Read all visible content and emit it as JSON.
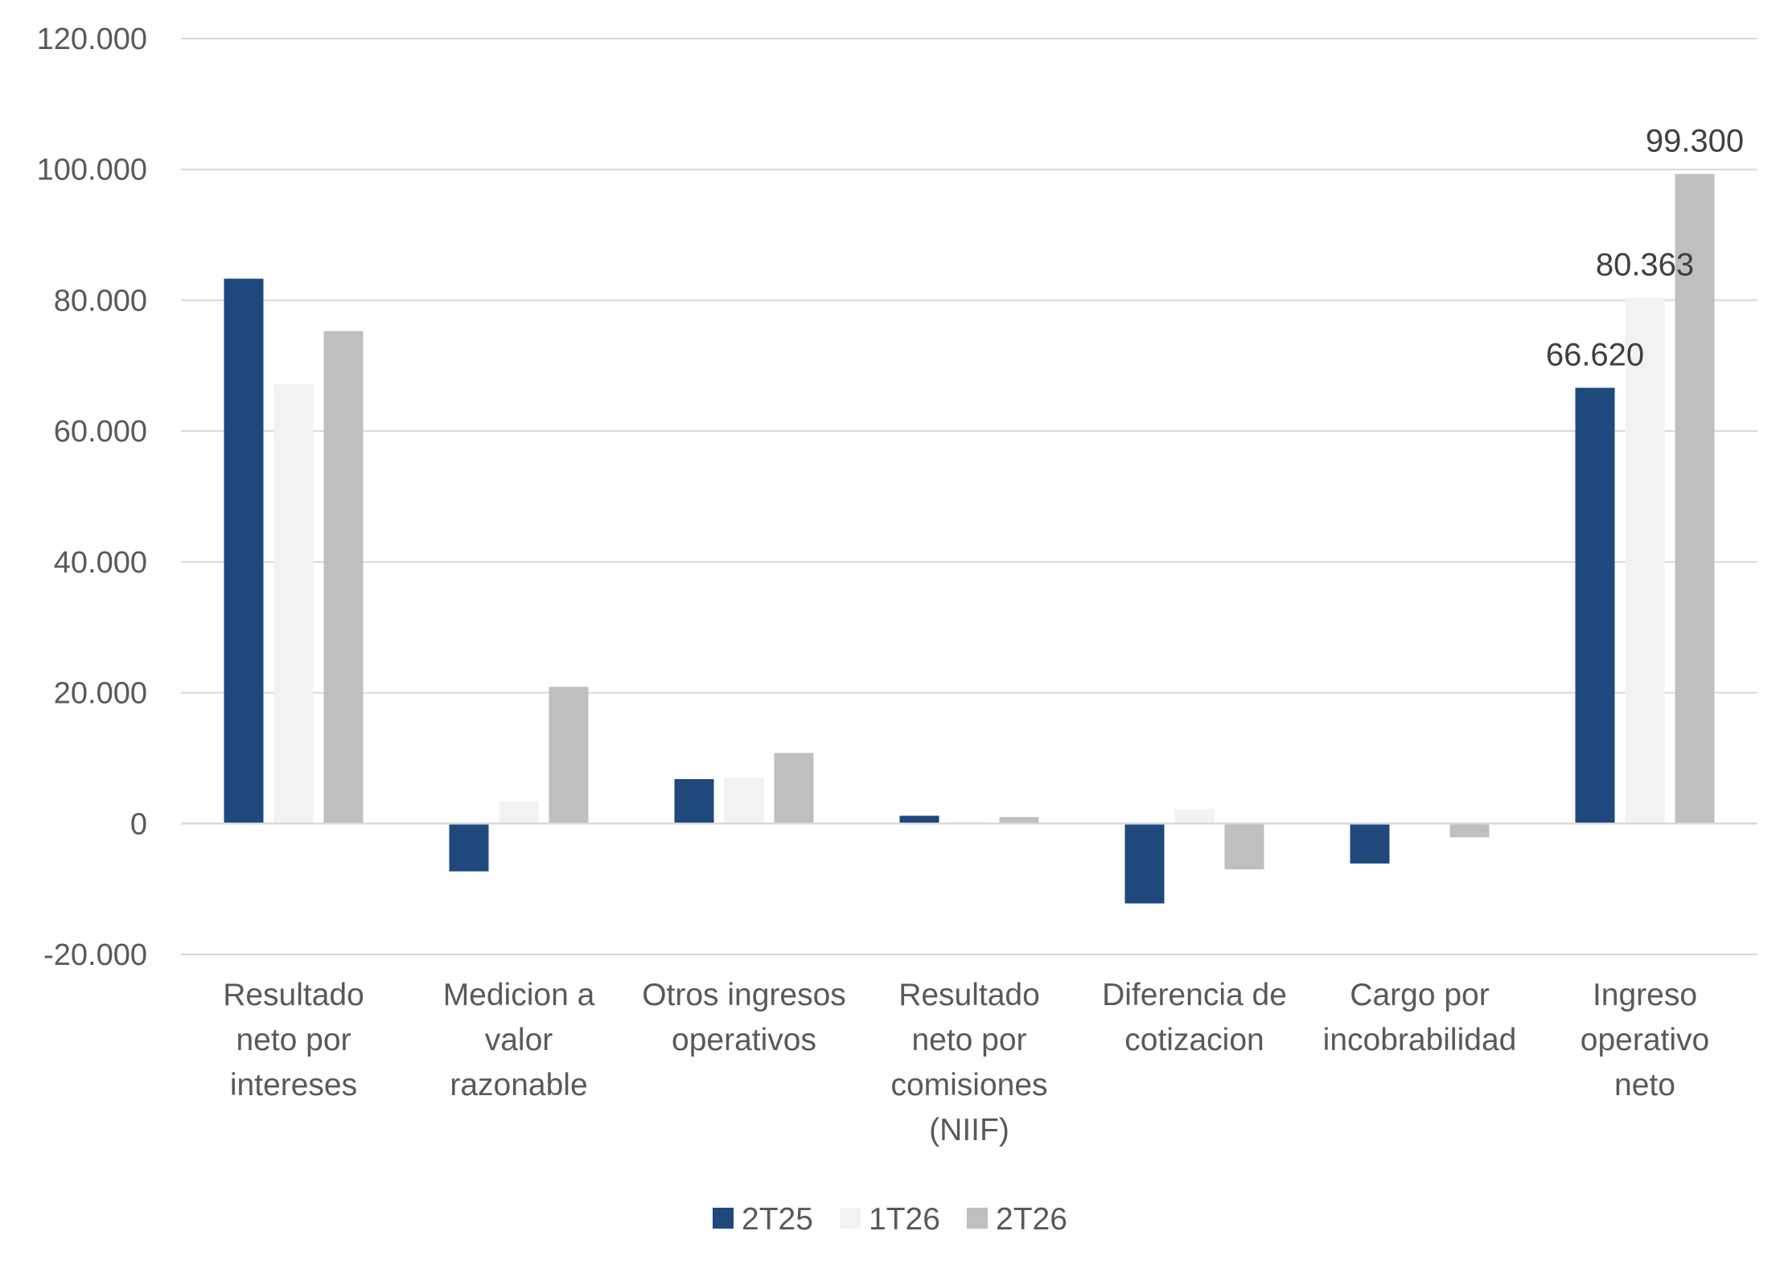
{
  "chart_data": {
    "type": "bar",
    "title": "",
    "xlabel": "",
    "ylabel": "",
    "ylim": [
      -20000,
      120000
    ],
    "yticks": [
      -20000,
      0,
      20000,
      40000,
      60000,
      80000,
      100000,
      120000
    ],
    "ytick_labels": [
      "-20.000",
      "0",
      "20.000",
      "40.000",
      "60.000",
      "80.000",
      "100.000",
      "120.000"
    ],
    "grid": true,
    "legend_position": "bottom",
    "categories": [
      [
        "Resultado",
        "neto por",
        "intereses"
      ],
      [
        "Medicion a",
        "valor",
        "razonable"
      ],
      [
        "Otros ingresos",
        "operativos"
      ],
      [
        "Resultado",
        "neto por",
        "comisiones",
        "(NIIF)"
      ],
      [
        "Diferencia de",
        "cotizacion"
      ],
      [
        "Cargo por",
        "incobrabilidad"
      ],
      [
        "Ingreso",
        "operativo",
        "neto"
      ]
    ],
    "series": [
      {
        "name": "2T25",
        "color": "#1f497d",
        "values": [
          83300,
          -7300,
          6800,
          1200,
          -12200,
          -6100,
          66620
        ],
        "data_labels": [
          null,
          null,
          null,
          null,
          null,
          null,
          "66.620"
        ]
      },
      {
        "name": "1T26",
        "color": "#f2f2f2",
        "values": [
          67200,
          3400,
          7100,
          300,
          2200,
          0,
          80363
        ],
        "data_labels": [
          null,
          null,
          null,
          null,
          null,
          null,
          "80.363"
        ]
      },
      {
        "name": "2T26",
        "color": "#bfbfbf",
        "values": [
          75300,
          20900,
          10800,
          1000,
          -7000,
          -2100,
          99300
        ],
        "data_labels": [
          null,
          null,
          null,
          null,
          null,
          null,
          "99.300"
        ]
      }
    ]
  }
}
